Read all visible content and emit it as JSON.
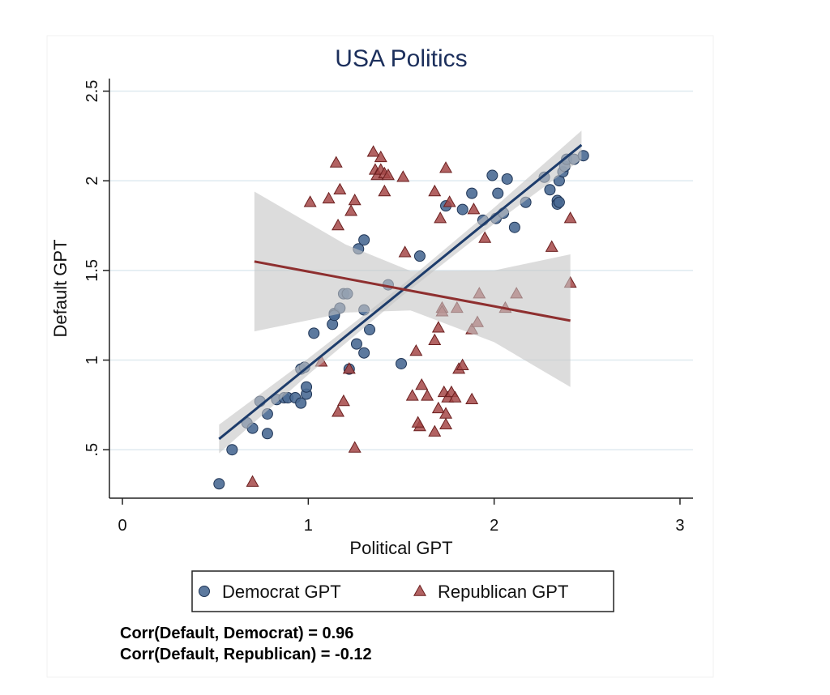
{
  "chart_data": {
    "type": "scatter",
    "title": "USA Politics",
    "x_label": "Political GPT",
    "y_label": "Default GPT",
    "xlim": [
      -0.07,
      3.07
    ],
    "ylim": [
      0.23,
      2.57
    ],
    "xticks": [
      0,
      1,
      2,
      3
    ],
    "yticks": [
      {
        "value": 0.5,
        "label": ".5"
      },
      1,
      1.5,
      2,
      2.5
    ],
    "grid": true,
    "legend": "bottom",
    "series": [
      {
        "name": "Democrat GPT",
        "color": "#4a6a93",
        "marker": "circle",
        "x": [
          0.52,
          0.59,
          0.67,
          0.7,
          0.74,
          0.78,
          0.78,
          0.83,
          0.87,
          0.89,
          0.93,
          0.96,
          0.99,
          0.99,
          0.96,
          0.98,
          1.03,
          1.13,
          1.14,
          1.17,
          1.19,
          1.21,
          1.14,
          1.22,
          1.26,
          1.27,
          1.3,
          1.3,
          1.3,
          1.33,
          1.43,
          1.5,
          1.6,
          1.74,
          1.83,
          1.88,
          1.94,
          1.99,
          2.01,
          2.02,
          2.05,
          2.07,
          2.11,
          2.17,
          2.27,
          2.3,
          2.34,
          2.35,
          2.34,
          2.37,
          2.38,
          2.39,
          2.43,
          2.48,
          2.35
        ],
        "values": [
          0.31,
          0.5,
          0.65,
          0.62,
          0.77,
          0.7,
          0.59,
          0.78,
          0.79,
          0.79,
          0.79,
          0.76,
          0.81,
          0.85,
          0.95,
          0.96,
          1.15,
          1.2,
          1.26,
          1.29,
          1.37,
          1.37,
          1.25,
          0.95,
          1.09,
          1.62,
          1.67,
          1.28,
          1.04,
          1.17,
          1.42,
          0.98,
          1.58,
          1.86,
          1.84,
          1.93,
          1.78,
          2.03,
          1.79,
          1.93,
          1.82,
          2.01,
          1.74,
          1.88,
          2.02,
          1.95,
          1.89,
          2.0,
          1.87,
          2.05,
          2.08,
          2.12,
          2.12,
          2.14,
          1.88
        ],
        "fit": {
          "color": "#1d3c6b",
          "x": [
            0.52,
            1.0,
            1.5,
            2.0,
            2.47
          ],
          "values": [
            0.56,
            0.964,
            1.384,
            1.805,
            2.2
          ],
          "lower": [
            0.48,
            0.919,
            1.354,
            1.76,
            2.12
          ],
          "upper": [
            0.64,
            1.009,
            1.414,
            1.85,
            2.28
          ]
        }
      },
      {
        "name": "Republican GPT",
        "color": "#a44848",
        "marker": "triangle",
        "x": [
          0.7,
          1.01,
          1.07,
          1.11,
          1.15,
          1.16,
          1.16,
          1.17,
          1.19,
          1.22,
          1.23,
          1.25,
          1.25,
          1.35,
          1.39,
          1.36,
          1.37,
          1.39,
          1.41,
          1.43,
          1.41,
          1.51,
          1.52,
          1.56,
          1.58,
          1.6,
          1.61,
          1.59,
          1.64,
          1.68,
          1.68,
          1.68,
          1.7,
          1.7,
          1.71,
          1.72,
          1.72,
          1.73,
          1.74,
          1.74,
          1.74,
          1.75,
          1.77,
          1.76,
          1.79,
          1.8,
          1.81,
          1.83,
          1.88,
          1.88,
          1.89,
          1.91,
          1.92,
          1.95,
          2.06,
          2.12,
          2.31,
          2.41,
          2.41
        ],
        "values": [
          0.32,
          1.88,
          0.99,
          1.9,
          2.1,
          1.75,
          0.71,
          1.95,
          0.77,
          0.95,
          1.83,
          1.89,
          0.51,
          2.16,
          2.13,
          2.06,
          2.03,
          2.06,
          2.04,
          2.03,
          1.94,
          2.02,
          1.6,
          0.8,
          1.05,
          0.63,
          0.86,
          0.65,
          0.8,
          1.94,
          1.11,
          0.6,
          1.18,
          0.73,
          1.79,
          1.29,
          1.27,
          0.82,
          0.64,
          2.07,
          0.7,
          0.79,
          0.82,
          1.88,
          0.79,
          1.29,
          0.95,
          0.97,
          1.17,
          0.78,
          1.84,
          1.21,
          1.37,
          1.68,
          1.29,
          1.37,
          1.63,
          1.79,
          1.43
        ],
        "fit": {
          "color": "#8e2f2f",
          "x": [
            0.71,
            1.2,
            1.55,
            2.0,
            2.41
          ],
          "values": [
            1.55,
            1.455,
            1.387,
            1.3,
            1.22
          ],
          "lower": [
            1.16,
            1.265,
            1.277,
            1.1,
            0.85
          ],
          "upper": [
            1.94,
            1.645,
            1.497,
            1.5,
            1.59
          ]
        }
      }
    ],
    "annotations": [
      "Corr(Default, Democrat) = 0.96",
      "Corr(Default, Republican) = -0.12"
    ]
  }
}
